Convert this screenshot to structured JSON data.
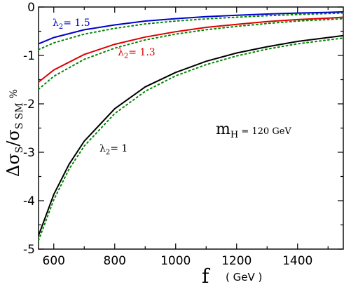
{
  "chart_data": {
    "type": "line",
    "xlabel": "f",
    "xlabel_unit": "( GeV )",
    "ylabel": "Δσ",
    "ylabel_parts": [
      "Δσ",
      "S",
      "/σ",
      "S SM",
      "%"
    ],
    "xlim": [
      550,
      1550
    ],
    "ylim": [
      -5,
      0
    ],
    "x_ticks": [
      600,
      800,
      1000,
      1200,
      1400
    ],
    "y_ticks": [
      0,
      -1,
      -2,
      -3,
      -4,
      -5
    ],
    "x_tick_labels": [
      "600",
      "800",
      "1000",
      "1200",
      "1400"
    ],
    "y_tick_labels": [
      "0",
      "-1",
      "-2",
      "-3",
      "-4",
      "-5"
    ],
    "annotation_mh": {
      "main": "m",
      "sub": "H",
      "value": " = 120 GeV"
    },
    "series": [
      {
        "label_main": "λ",
        "label_sub": "2",
        "label_value": "= 1.5",
        "color": "#0000cc",
        "style": "solid",
        "x": [
          550,
          600,
          700,
          800,
          900,
          1000,
          1100,
          1200,
          1300,
          1400,
          1500,
          1550
        ],
        "y": [
          -0.76,
          -0.63,
          -0.47,
          -0.37,
          -0.29,
          -0.24,
          -0.2,
          -0.17,
          -0.145,
          -0.125,
          -0.11,
          -0.1
        ]
      },
      {
        "color": "#008800",
        "style": "dotted",
        "x": [
          550,
          600,
          700,
          800,
          900,
          1000,
          1100,
          1200,
          1300,
          1400,
          1500,
          1550
        ],
        "y": [
          -0.88,
          -0.74,
          -0.56,
          -0.44,
          -0.35,
          -0.29,
          -0.245,
          -0.21,
          -0.18,
          -0.155,
          -0.135,
          -0.125
        ]
      },
      {
        "label_main": "λ",
        "label_sub": "2",
        "label_value": "= 1.3",
        "color": "#dd0000",
        "style": "solid",
        "x": [
          550,
          600,
          700,
          800,
          900,
          1000,
          1100,
          1200,
          1300,
          1400,
          1500,
          1550
        ],
        "y": [
          -1.55,
          -1.3,
          -0.98,
          -0.77,
          -0.62,
          -0.51,
          -0.42,
          -0.36,
          -0.3,
          -0.26,
          -0.23,
          -0.21
        ]
      },
      {
        "color": "#008800",
        "style": "dotted",
        "x": [
          550,
          600,
          700,
          800,
          900,
          1000,
          1100,
          1200,
          1300,
          1400,
          1500,
          1550
        ],
        "y": [
          -1.7,
          -1.43,
          -1.08,
          -0.85,
          -0.68,
          -0.56,
          -0.47,
          -0.4,
          -0.34,
          -0.29,
          -0.26,
          -0.24
        ]
      },
      {
        "label_main": "λ",
        "label_sub": "2",
        "label_value": "= 1",
        "color": "#000000",
        "style": "solid",
        "x": [
          550,
          600,
          650,
          700,
          800,
          900,
          1000,
          1100,
          1200,
          1300,
          1400,
          1500,
          1550
        ],
        "y": [
          -4.72,
          -3.87,
          -3.25,
          -2.77,
          -2.1,
          -1.65,
          -1.35,
          -1.12,
          -0.95,
          -0.82,
          -0.71,
          -0.63,
          -0.59
        ]
      },
      {
        "color": "#008800",
        "style": "dotted",
        "x": [
          550,
          600,
          650,
          700,
          800,
          900,
          1000,
          1100,
          1200,
          1300,
          1400,
          1500,
          1550
        ],
        "y": [
          -4.82,
          -3.98,
          -3.35,
          -2.87,
          -2.2,
          -1.74,
          -1.42,
          -1.19,
          -1.01,
          -0.87,
          -0.76,
          -0.68,
          -0.64
        ]
      }
    ]
  }
}
